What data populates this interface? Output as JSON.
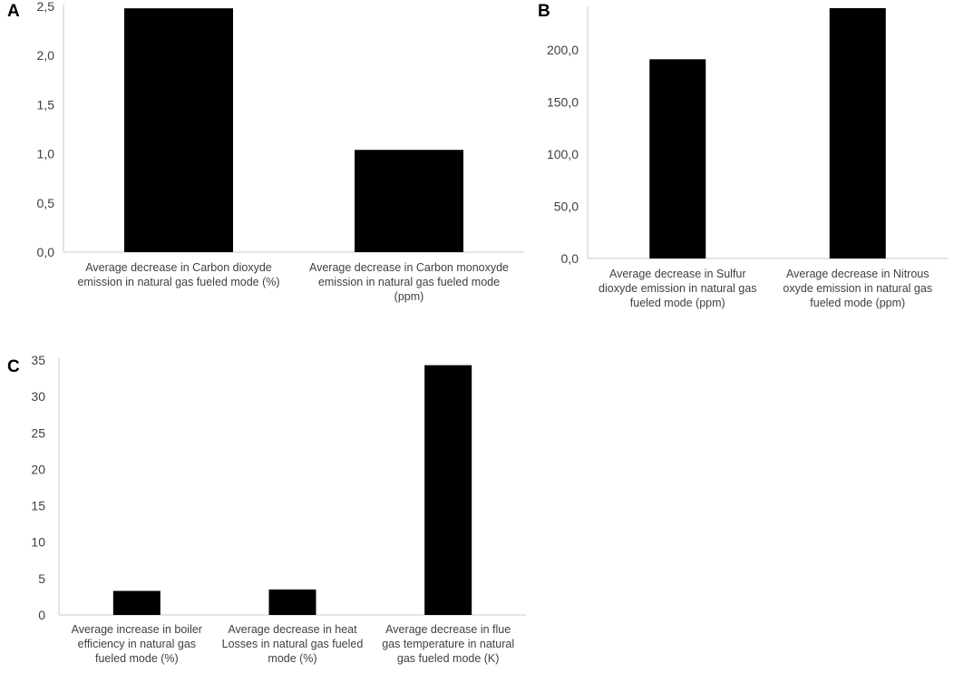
{
  "panels": {
    "a": "A",
    "b": "B",
    "c": "C"
  },
  "chart_data": [
    {
      "panel": "A",
      "type": "bar",
      "categories": [
        [
          "Average decrease in Carbon dioxyde",
          "emission in natural gas fueled mode (%)"
        ],
        [
          "Average decrease in Carbon monoxyde",
          "emission in natural gas fueled mode",
          "(ppm)"
        ]
      ],
      "values": [
        2.48,
        1.04
      ],
      "ylim": [
        0,
        2.5
      ],
      "yticks": [
        "0,0",
        "0,5",
        "1,0",
        "1,5",
        "2,0",
        "2,5"
      ],
      "bar_color": "#000000",
      "axis_color": "#c8c8c8",
      "grid": false
    },
    {
      "panel": "B",
      "type": "bar",
      "categories": [
        [
          "Average decrease in Sulfur",
          "dioxyde emission in natural gas",
          "fueled mode (ppm)"
        ],
        [
          "Average decrease in Nitrous",
          "oxyde emission in natural gas",
          "fueled mode (ppm)"
        ]
      ],
      "values": [
        191,
        240
      ],
      "ylim": [
        0,
        240
      ],
      "yticks": [
        "0,0",
        "50,0",
        "100,0",
        "150,0",
        "200,0"
      ],
      "bar_color": "#000000",
      "axis_color": "#c8c8c8",
      "grid": false
    },
    {
      "panel": "C",
      "type": "bar",
      "categories": [
        [
          "Average increase in boiler",
          "efficiency in natural gas",
          "fueled mode (%)"
        ],
        [
          "Average decrease in heat",
          "Losses in natural gas fueled",
          "mode (%)"
        ],
        [
          "Average decrease in flue",
          "gas temperature in natural",
          "gas fueled mode (K)"
        ]
      ],
      "values": [
        3.3,
        3.5,
        34.3
      ],
      "ylim": [
        0,
        35
      ],
      "yticks": [
        "0",
        "5",
        "10",
        "15",
        "20",
        "25",
        "30",
        "35"
      ],
      "bar_color": "#000000",
      "axis_color": "#c8c8c8",
      "grid": false
    }
  ]
}
